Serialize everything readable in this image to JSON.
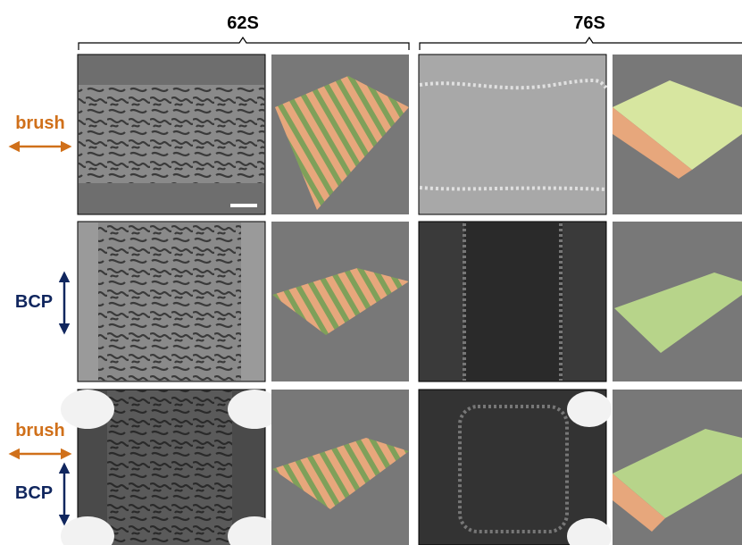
{
  "columns": [
    {
      "label": "62S"
    },
    {
      "label": "76S"
    }
  ],
  "rows": [
    {
      "labels": [
        "brush"
      ]
    },
    {
      "labels": [
        "BCP"
      ]
    },
    {
      "labels": [
        "brush",
        "BCP"
      ]
    }
  ]
}
